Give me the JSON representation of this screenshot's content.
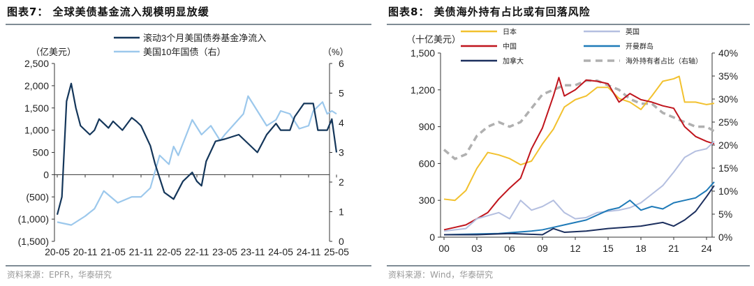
{
  "chart_data": [
    {
      "type": "line",
      "title": "图表7：  全球美债基金流入规模明显放缓",
      "source": "资料来源：EPFR，华泰研究",
      "left_unit": "（亿美元）",
      "right_unit": "（%）",
      "x_ticks": [
        "20-05",
        "20-11",
        "21-05",
        "21-11",
        "22-05",
        "22-11",
        "23-05",
        "23-11",
        "24-05",
        "24-11",
        "25-05"
      ],
      "x_range_months_from_2020_05": [
        0,
        60
      ],
      "y_left": {
        "range": [
          -1500,
          2500
        ],
        "ticks": [
          -1500,
          -1000,
          -500,
          0,
          500,
          1000,
          1500,
          2000,
          2500
        ],
        "tick_labels": [
          "(1,500)",
          "(1,000)",
          "(500)",
          "0",
          "500",
          "1,000",
          "1,500",
          "2,000",
          "2,500"
        ]
      },
      "y_right": {
        "range": [
          0,
          6
        ],
        "ticks": [
          0,
          1,
          2,
          3,
          4,
          5,
          6
        ],
        "tick_labels": [
          "0",
          "1",
          "2",
          "3",
          "4",
          "5",
          "6"
        ]
      },
      "grid": false,
      "legend_position": "top-center",
      "series": [
        {
          "name": "滚动3个月美国债券基金净流入",
          "axis": "left",
          "color": "#14365a",
          "points": [
            [
              "2020-05",
              -900
            ],
            [
              "2020-06",
              -500
            ],
            [
              "2020-07",
              1650
            ],
            [
              "2020-08",
              2050
            ],
            [
              "2020-09",
              1500
            ],
            [
              "2020-10",
              1100
            ],
            [
              "2020-12",
              900
            ],
            [
              "2021-01",
              1000
            ],
            [
              "2021-02",
              1250
            ],
            [
              "2021-04",
              1050
            ],
            [
              "2021-05",
              1200
            ],
            [
              "2021-07",
              1000
            ],
            [
              "2021-09",
              1280
            ],
            [
              "2021-10",
              1200
            ],
            [
              "2021-11",
              1100
            ],
            [
              "2022-01",
              650
            ],
            [
              "2022-02",
              250
            ],
            [
              "2022-04",
              -400
            ],
            [
              "2022-06",
              -550
            ],
            [
              "2022-07",
              -350
            ],
            [
              "2022-08",
              -150
            ],
            [
              "2022-10",
              50
            ],
            [
              "2022-11",
              -150
            ],
            [
              "2022-12",
              -250
            ],
            [
              "2023-01",
              300
            ],
            [
              "2023-03",
              750
            ],
            [
              "2023-05",
              800
            ],
            [
              "2023-08",
              900
            ],
            [
              "2023-10",
              700
            ],
            [
              "2023-12",
              500
            ],
            [
              "2024-02",
              900
            ],
            [
              "2024-04",
              1150
            ],
            [
              "2024-05",
              1000
            ],
            [
              "2024-07",
              1000
            ],
            [
              "2024-08",
              1300
            ],
            [
              "2024-10",
              1600
            ],
            [
              "2024-12",
              1600
            ],
            [
              "2025-01",
              1000
            ],
            [
              "2025-03",
              1000
            ],
            [
              "2025-04",
              1250
            ],
            [
              "2025-05",
              500
            ]
          ]
        },
        {
          "name": "美国10年国债（右）",
          "axis": "right",
          "color": "#9cc8ec",
          "points": [
            [
              "2020-05",
              0.65
            ],
            [
              "2020-08",
              0.55
            ],
            [
              "2020-11",
              0.85
            ],
            [
              "2021-01",
              1.1
            ],
            [
              "2021-03",
              1.7
            ],
            [
              "2021-06",
              1.3
            ],
            [
              "2021-09",
              1.5
            ],
            [
              "2021-11",
              1.5
            ],
            [
              "2022-01",
              1.8
            ],
            [
              "2022-03",
              2.9
            ],
            [
              "2022-05",
              2.6
            ],
            [
              "2022-06",
              3.2
            ],
            [
              "2022-07",
              2.9
            ],
            [
              "2022-10",
              4.1
            ],
            [
              "2022-12",
              3.6
            ],
            [
              "2023-02",
              3.9
            ],
            [
              "2023-04",
              3.4
            ],
            [
              "2023-05",
              3.6
            ],
            [
              "2023-09",
              4.3
            ],
            [
              "2023-10",
              4.9
            ],
            [
              "2024-02",
              3.9
            ],
            [
              "2024-04",
              4.1
            ],
            [
              "2024-05",
              4.4
            ],
            [
              "2024-07",
              4.3
            ],
            [
              "2024-09",
              3.8
            ],
            [
              "2024-11",
              3.9
            ],
            [
              "2024-12",
              4.4
            ],
            [
              "2025-02",
              4.7
            ],
            [
              "2025-03",
              4.3
            ],
            [
              "2025-04",
              4.4
            ],
            [
              "2025-05",
              4.3
            ]
          ]
        }
      ]
    },
    {
      "type": "line",
      "title": "图表8：  美债海外持有占比或有回落风险",
      "source": "资料来源：Wind，华泰研究",
      "left_unit": "（十亿美元）",
      "x_ticks": [
        "00",
        "03",
        "06",
        "09",
        "12",
        "15",
        "18",
        "21",
        "24"
      ],
      "x_range_years": [
        2000,
        2025
      ],
      "y_left": {
        "range": [
          0,
          1500
        ],
        "ticks": [
          0,
          300,
          600,
          900,
          1200,
          1500
        ],
        "tick_labels": [
          "0",
          "300",
          "600",
          "900",
          "1,200",
          "1,500"
        ]
      },
      "y_right": {
        "range": [
          0,
          40
        ],
        "ticks": [
          0,
          5,
          10,
          15,
          20,
          25,
          30,
          35,
          40
        ],
        "tick_labels": [
          "0%",
          "5%",
          "10%",
          "15%",
          "20%",
          "25%",
          "30%",
          "35%",
          "40%"
        ]
      },
      "grid": false,
      "legend_position": "top",
      "series": [
        {
          "name": "日本",
          "axis": "left",
          "color": "#f2c12e",
          "dash": false,
          "points": [
            [
              2000,
              310
            ],
            [
              2001,
              300
            ],
            [
              2002,
              380
            ],
            [
              2003,
              560
            ],
            [
              2004,
              690
            ],
            [
              2005,
              670
            ],
            [
              2006,
              640
            ],
            [
              2007,
              590
            ],
            [
              2008,
              620
            ],
            [
              2009,
              760
            ],
            [
              2010,
              880
            ],
            [
              2011,
              1060
            ],
            [
              2012,
              1120
            ],
            [
              2013,
              1150
            ],
            [
              2014,
              1220
            ],
            [
              2015,
              1220
            ],
            [
              2016,
              1130
            ],
            [
              2017,
              1100
            ],
            [
              2018,
              1040
            ],
            [
              2019,
              1150
            ],
            [
              2020,
              1270
            ],
            [
              2021,
              1290
            ],
            [
              2021.5,
              1310
            ],
            [
              2022,
              1100
            ],
            [
              2023,
              1100
            ],
            [
              2024,
              1080
            ],
            [
              2024.7,
              1090
            ]
          ]
        },
        {
          "name": "英国",
          "axis": "left",
          "color": "#b4bfe0",
          "dash": false,
          "points": [
            [
              2000,
              50
            ],
            [
              2002,
              70
            ],
            [
              2003,
              150
            ],
            [
              2005,
              200
            ],
            [
              2006,
              150
            ],
            [
              2007,
              300
            ],
            [
              2008,
              220
            ],
            [
              2009,
              250
            ],
            [
              2010,
              300
            ],
            [
              2011,
              200
            ],
            [
              2012,
              150
            ],
            [
              2013,
              160
            ],
            [
              2014,
              200
            ],
            [
              2015,
              210
            ],
            [
              2016,
              220
            ],
            [
              2017,
              240
            ],
            [
              2018,
              280
            ],
            [
              2019,
              350
            ],
            [
              2020,
              420
            ],
            [
              2021,
              530
            ],
            [
              2022,
              650
            ],
            [
              2023,
              700
            ],
            [
              2024,
              720
            ],
            [
              2024.7,
              780
            ]
          ]
        },
        {
          "name": "中国",
          "axis": "left",
          "color": "#c0141c",
          "dash": false,
          "points": [
            [
              2000,
              60
            ],
            [
              2001,
              80
            ],
            [
              2002,
              100
            ],
            [
              2003,
              150
            ],
            [
              2004,
              200
            ],
            [
              2005,
              310
            ],
            [
              2006,
              400
            ],
            [
              2007,
              480
            ],
            [
              2008,
              720
            ],
            [
              2009,
              890
            ],
            [
              2010,
              1150
            ],
            [
              2010.5,
              1300
            ],
            [
              2011,
              1150
            ],
            [
              2012,
              1200
            ],
            [
              2013,
              1280
            ],
            [
              2014,
              1270
            ],
            [
              2015,
              1250
            ],
            [
              2016,
              1100
            ],
            [
              2017,
              1170
            ],
            [
              2018,
              1120
            ],
            [
              2019,
              1100
            ],
            [
              2020,
              1070
            ],
            [
              2021,
              1050
            ],
            [
              2022,
              900
            ],
            [
              2023,
              820
            ],
            [
              2024,
              780
            ],
            [
              2024.7,
              760
            ]
          ]
        },
        {
          "name": "开曼群岛",
          "axis": "left",
          "color": "#1e7ab8",
          "dash": false,
          "points": [
            [
              2000,
              20
            ],
            [
              2005,
              30
            ],
            [
              2008,
              50
            ],
            [
              2009,
              60
            ],
            [
              2010,
              80
            ],
            [
              2011,
              100
            ],
            [
              2013,
              140
            ],
            [
              2015,
              220
            ],
            [
              2016,
              240
            ],
            [
              2017,
              300
            ],
            [
              2018,
              220
            ],
            [
              2019,
              250
            ],
            [
              2020,
              230
            ],
            [
              2021,
              280
            ],
            [
              2022,
              300
            ],
            [
              2023,
              320
            ],
            [
              2024,
              380
            ],
            [
              2024.7,
              450
            ]
          ]
        },
        {
          "name": "加拿大",
          "axis": "left",
          "color": "#1c2f5e",
          "dash": false,
          "points": [
            [
              2000,
              20
            ],
            [
              2003,
              20
            ],
            [
              2006,
              30
            ],
            [
              2009,
              20
            ],
            [
              2010,
              70
            ],
            [
              2011,
              40
            ],
            [
              2013,
              50
            ],
            [
              2015,
              70
            ],
            [
              2018,
              90
            ],
            [
              2020,
              120
            ],
            [
              2021,
              90
            ],
            [
              2022,
              140
            ],
            [
              2023,
              210
            ],
            [
              2024,
              330
            ],
            [
              2024.7,
              420
            ]
          ]
        },
        {
          "name": "海外持有者占比（右轴）",
          "axis": "right",
          "color": "#b0b0b0",
          "dash": true,
          "points": [
            [
              2000,
              19
            ],
            [
              2001,
              17
            ],
            [
              2002,
              18
            ],
            [
              2003,
              22
            ],
            [
              2004,
              24
            ],
            [
              2005,
              25
            ],
            [
              2006,
              24
            ],
            [
              2007,
              25
            ],
            [
              2008,
              28
            ],
            [
              2009,
              31
            ],
            [
              2010,
              32
            ],
            [
              2011,
              33
            ],
            [
              2012,
              33
            ],
            [
              2013,
              34
            ],
            [
              2014,
              34
            ],
            [
              2015,
              33
            ],
            [
              2016,
              32
            ],
            [
              2017,
              30
            ],
            [
              2018,
              29
            ],
            [
              2019,
              29
            ],
            [
              2020,
              27
            ],
            [
              2021,
              26
            ],
            [
              2022,
              25
            ],
            [
              2023,
              24
            ],
            [
              2024,
              24
            ],
            [
              2024.7,
              23
            ]
          ]
        }
      ]
    }
  ]
}
